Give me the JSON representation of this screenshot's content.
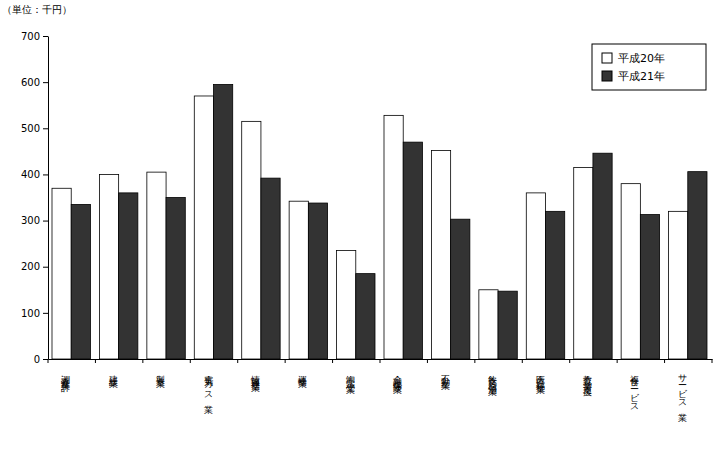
{
  "chart_data": {
    "type": "bar",
    "y_label": "（単位：千円）",
    "categories": [
      "調査産業計",
      "建設業",
      "製造業",
      "電気・ガス業",
      "情報通信業",
      "運輸業",
      "卸売・小売業",
      "金融・保険業",
      "不動産業",
      "飲食店・宿泊業",
      "医療・福祉業",
      "教育・学習支援",
      "複合サービス",
      "サービス業"
    ],
    "series": [
      {
        "name": "平成20年",
        "color": "#ffffff",
        "values": [
          370,
          400,
          405,
          570,
          515,
          342,
          235,
          528,
          452,
          150,
          360,
          415,
          380,
          320
        ]
      },
      {
        "name": "平成21年",
        "color": "#333333",
        "values": [
          335,
          360,
          350,
          595,
          392,
          338,
          185,
          470,
          303,
          147,
          320,
          446,
          313,
          406
        ]
      }
    ],
    "ylim": [
      0,
      700
    ],
    "yticks": [
      0,
      100,
      200,
      300,
      400,
      500,
      600,
      700
    ],
    "grid": false,
    "legend": "upper right"
  }
}
